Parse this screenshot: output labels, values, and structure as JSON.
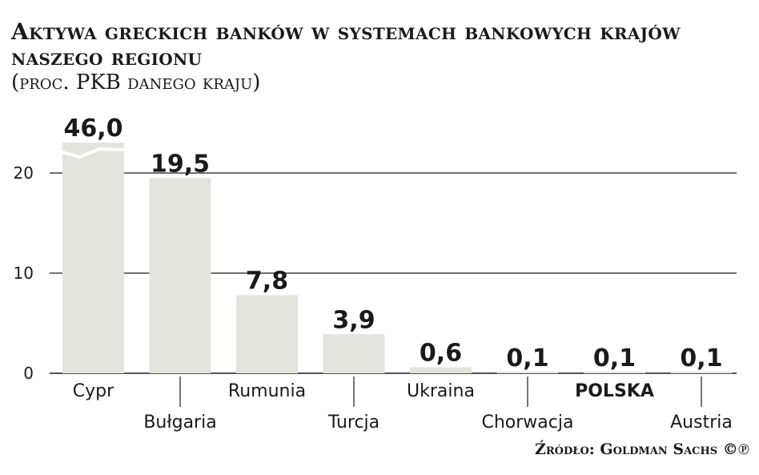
{
  "title": "Aktywa greckich banków w systemach bankowych krajów naszego regionu",
  "subtitle": "(proc. PKB danego kraju)",
  "source": "Źródło: Goldman Sachs ©℗",
  "colors": {
    "bar": "#e4e4df",
    "highlight": "#c0325a",
    "grid": "#1a1a1a",
    "text": "#1a1a1a"
  },
  "chart_data": {
    "type": "bar",
    "categories": [
      "Cypr",
      "Bułgaria",
      "Rumunia",
      "Turcja",
      "Ukraina",
      "Chorwacja",
      "POLSKA",
      "Austria"
    ],
    "values": [
      46.0,
      19.5,
      7.8,
      3.9,
      0.6,
      0.1,
      0.1,
      0.1
    ],
    "value_labels": [
      "46,0",
      "19,5",
      "7,8",
      "3,9",
      "0,6",
      "0,1",
      "0,1",
      "0,1"
    ],
    "highlight_category": "POLSKA",
    "axis_break": {
      "category": "Cypr",
      "note": "bar truncated above axis maximum"
    },
    "ylim": [
      0,
      20
    ],
    "yticks": [
      0,
      10,
      20
    ],
    "grid": true
  }
}
